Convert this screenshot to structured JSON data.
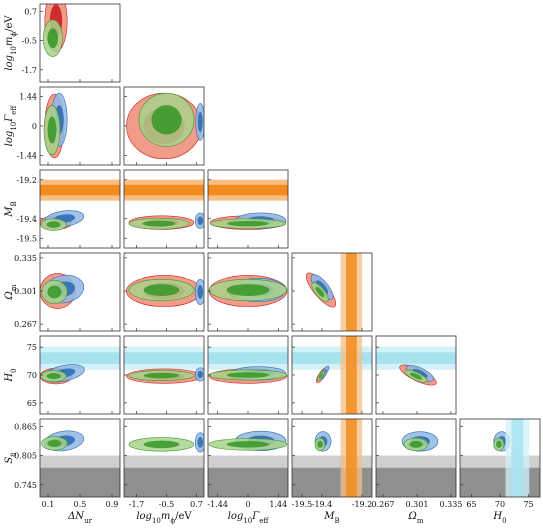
{
  "chart_data": {
    "type": "scatter",
    "subtype": "corner-plot",
    "parameters": [
      {
        "key": "dNur",
        "label": "ΔN",
        "sub": "ur",
        "range": [
          0.0,
          1.0
        ],
        "ticks": [
          0.1,
          0.5,
          0.9
        ],
        "tick_labels": [
          "0.1",
          "0.5",
          "0.9"
        ]
      },
      {
        "key": "mphi",
        "label": "log",
        "sub": "10",
        "label_rest": "m",
        "label_sub2": "ϕ",
        "unit": "/eV",
        "range": [
          -2.2,
          1.0
        ],
        "ticks": [
          -1.7,
          -0.5,
          0.7
        ],
        "tick_labels": [
          "-1.7",
          "-0.5",
          "0.7"
        ]
      },
      {
        "key": "gamma",
        "label": "log",
        "sub": "10",
        "label_rest": "Γ",
        "label_sub2": "eff",
        "range": [
          -1.9,
          1.9
        ],
        "ticks": [
          -1.44,
          0,
          1.44
        ],
        "tick_labels": [
          "-1.44",
          "0",
          "1.44"
        ]
      },
      {
        "key": "MB",
        "label": "M",
        "sub": "B",
        "range": [
          -19.55,
          -19.15
        ],
        "ticks": [
          -19.5,
          -19.4,
          -19.2
        ],
        "tick_labels": [
          "-19.5",
          "-19.4",
          "-19.2"
        ],
        "ytick_labels": [
          "-19.2",
          "-19.4",
          "-19.5"
        ]
      },
      {
        "key": "Om",
        "label": "Ω",
        "sub": "m",
        "range": [
          0.26,
          0.34
        ],
        "ticks": [
          0.267,
          0.301,
          0.335
        ],
        "tick_labels": [
          "0.267",
          "0.301",
          "0.335"
        ]
      },
      {
        "key": "H0",
        "label": "H",
        "sub": "0",
        "range": [
          63,
          77
        ],
        "ticks": [
          65,
          70,
          75
        ],
        "tick_labels": [
          "65",
          "70",
          "75"
        ]
      },
      {
        "key": "S8",
        "label": "S",
        "sub": "8",
        "range": [
          0.72,
          0.88
        ],
        "ticks": [
          0.745,
          0.805,
          0.865
        ],
        "tick_labels": [
          "0.745",
          "0.805",
          "0.865"
        ]
      }
    ],
    "series": [
      {
        "name": "",
        "color_inner": "#cc1f26",
        "color_outer": "#ee8a74"
      },
      {
        "name": "",
        "color_inner": "#2d6db5",
        "color_outer": "#8fb7e3"
      },
      {
        "name": "",
        "color_inner": "#3c9a2a",
        "color_outer": "#a9d28d"
      }
    ],
    "priors": {
      "MB": {
        "mean": -19.253,
        "sigma": 0.027,
        "color_inner": "#f28c1e",
        "color_outer": "#f8be83"
      },
      "H0": {
        "mean": 73.04,
        "sigma": 1.04,
        "color_inner": "#a7e3ef",
        "color_outer": "#d2f1f8"
      },
      "S8": {
        "upper_1sigma": 0.805,
        "upper_2sigma": 0.78,
        "color_inner": "#8f8f8f",
        "color_outer": "#cfcfcf"
      }
    },
    "panels": [
      {
        "row": 1,
        "col": 0,
        "blobs": [
          {
            "s": 0,
            "cx": 0.2,
            "cy": 0.3,
            "rx": 0.14,
            "ry": 1.25,
            "rot": 0
          },
          {
            "s": 2,
            "cx": 0.16,
            "cy": -0.4,
            "rx": 0.12,
            "ry": 0.75,
            "rot": 0
          }
        ]
      },
      {
        "row": 2,
        "col": 0,
        "blobs": [
          {
            "s": 0,
            "cx": 0.18,
            "cy": 0.0,
            "rx": 0.12,
            "ry": 1.55,
            "rot": 0
          },
          {
            "s": 1,
            "cx": 0.24,
            "cy": 0.3,
            "rx": 0.1,
            "ry": 1.3,
            "rot": 0
          },
          {
            "s": 2,
            "cx": 0.15,
            "cy": -0.2,
            "rx": 0.1,
            "ry": 1.2,
            "rot": 0
          }
        ]
      },
      {
        "row": 2,
        "col": 1,
        "blobs": [
          {
            "s": 0,
            "cx": -0.6,
            "cy": 0.0,
            "rx": 1.5,
            "ry": 1.6,
            "rot": 0
          },
          {
            "s": 2,
            "cx": -0.5,
            "cy": 0.3,
            "rx": 1.1,
            "ry": 1.3,
            "rot": 0
          },
          {
            "s": 1,
            "cx": 0.85,
            "cy": 0.2,
            "rx": 0.18,
            "ry": 0.9,
            "rot": 0
          }
        ]
      },
      {
        "row": 3,
        "col": 0,
        "blobs": [
          {
            "s": 0,
            "cx": 0.2,
            "cy": -19.42,
            "rx": 0.2,
            "ry": 0.035,
            "rot": 0
          },
          {
            "s": 1,
            "cx": 0.3,
            "cy": -19.4,
            "rx": 0.25,
            "ry": 0.04,
            "rot": -8
          },
          {
            "s": 2,
            "cx": 0.17,
            "cy": -19.43,
            "rx": 0.16,
            "ry": 0.03,
            "rot": 0
          }
        ]
      },
      {
        "row": 3,
        "col": 1,
        "blobs": [
          {
            "s": 0,
            "cx": -0.7,
            "cy": -19.42,
            "rx": 1.3,
            "ry": 0.035,
            "rot": 0
          },
          {
            "s": 2,
            "cx": -0.8,
            "cy": -19.425,
            "rx": 1.2,
            "ry": 0.028,
            "rot": 0
          },
          {
            "s": 1,
            "cx": 0.85,
            "cy": -19.41,
            "rx": 0.2,
            "ry": 0.04,
            "rot": 0
          }
        ]
      },
      {
        "row": 3,
        "col": 2,
        "blobs": [
          {
            "s": 0,
            "cx": 0.0,
            "cy": -19.42,
            "rx": 1.8,
            "ry": 0.035,
            "rot": 0
          },
          {
            "s": 1,
            "cx": 0.6,
            "cy": -19.41,
            "rx": 1.2,
            "ry": 0.04,
            "rot": 0
          },
          {
            "s": 2,
            "cx": 0.0,
            "cy": -19.425,
            "rx": 1.8,
            "ry": 0.025,
            "rot": 0
          }
        ]
      },
      {
        "row": 4,
        "col": 0,
        "blobs": [
          {
            "s": 0,
            "cx": 0.22,
            "cy": 0.301,
            "rx": 0.22,
            "ry": 0.018,
            "rot": 0
          },
          {
            "s": 1,
            "cx": 0.3,
            "cy": 0.303,
            "rx": 0.25,
            "ry": 0.014,
            "rot": -10
          },
          {
            "s": 2,
            "cx": 0.18,
            "cy": 0.3,
            "rx": 0.16,
            "ry": 0.012,
            "rot": 0
          }
        ]
      },
      {
        "row": 4,
        "col": 1,
        "blobs": [
          {
            "s": 0,
            "cx": -0.6,
            "cy": 0.301,
            "rx": 1.5,
            "ry": 0.016,
            "rot": 0
          },
          {
            "s": 2,
            "cx": -0.7,
            "cy": 0.302,
            "rx": 1.3,
            "ry": 0.011,
            "rot": 0
          },
          {
            "s": 1,
            "cx": 0.85,
            "cy": 0.3,
            "rx": 0.2,
            "ry": 0.013,
            "rot": 0
          }
        ]
      },
      {
        "row": 4,
        "col": 2,
        "blobs": [
          {
            "s": 0,
            "cx": 0.0,
            "cy": 0.301,
            "rx": 1.85,
            "ry": 0.016,
            "rot": 0
          },
          {
            "s": 1,
            "cx": 0.5,
            "cy": 0.302,
            "rx": 1.3,
            "ry": 0.012,
            "rot": 0
          },
          {
            "s": 2,
            "cx": 0.0,
            "cy": 0.302,
            "rx": 1.85,
            "ry": 0.011,
            "rot": 0
          }
        ]
      },
      {
        "row": 4,
        "col": 3,
        "blobs": [
          {
            "s": 0,
            "cx": -19.405,
            "cy": 0.302,
            "rx": 0.035,
            "ry": 0.022,
            "rot": -40
          },
          {
            "s": 1,
            "cx": -19.4,
            "cy": 0.305,
            "rx": 0.03,
            "ry": 0.016,
            "rot": -40
          },
          {
            "s": 2,
            "cx": -19.41,
            "cy": 0.3,
            "rx": 0.022,
            "ry": 0.012,
            "rot": -40
          }
        ]
      },
      {
        "row": 5,
        "col": 0,
        "blobs": [
          {
            "s": 0,
            "cx": 0.2,
            "cy": 69.8,
            "rx": 0.2,
            "ry": 1.4,
            "rot": 0
          },
          {
            "s": 1,
            "cx": 0.3,
            "cy": 70.3,
            "rx": 0.26,
            "ry": 1.4,
            "rot": -12
          },
          {
            "s": 2,
            "cx": 0.17,
            "cy": 69.8,
            "rx": 0.16,
            "ry": 1.0,
            "rot": 0
          }
        ]
      },
      {
        "row": 5,
        "col": 1,
        "blobs": [
          {
            "s": 0,
            "cx": -0.6,
            "cy": 69.8,
            "rx": 1.5,
            "ry": 1.3,
            "rot": 0
          },
          {
            "s": 2,
            "cx": -0.7,
            "cy": 69.9,
            "rx": 1.3,
            "ry": 0.9,
            "rot": 0
          },
          {
            "s": 1,
            "cx": 0.85,
            "cy": 70.1,
            "rx": 0.2,
            "ry": 1.2,
            "rot": 0
          }
        ]
      },
      {
        "row": 5,
        "col": 2,
        "blobs": [
          {
            "s": 0,
            "cx": 0.0,
            "cy": 69.8,
            "rx": 1.85,
            "ry": 1.3,
            "rot": 0
          },
          {
            "s": 1,
            "cx": 0.5,
            "cy": 70.3,
            "rx": 1.3,
            "ry": 1.2,
            "rot": 0
          },
          {
            "s": 2,
            "cx": 0.0,
            "cy": 70.0,
            "rx": 1.85,
            "ry": 0.9,
            "rot": 0
          }
        ]
      },
      {
        "row": 5,
        "col": 3,
        "blobs": [
          {
            "s": 0,
            "cx": -19.4,
            "cy": 70.0,
            "rx": 0.045,
            "ry": 0.55,
            "rot": -55
          },
          {
            "s": 1,
            "cx": -19.39,
            "cy": 70.4,
            "rx": 0.04,
            "ry": 0.45,
            "rot": -55
          },
          {
            "s": 2,
            "cx": -19.405,
            "cy": 69.9,
            "rx": 0.03,
            "ry": 0.32,
            "rot": -55
          }
        ]
      },
      {
        "row": 5,
        "col": 4,
        "blobs": [
          {
            "s": 0,
            "cx": 0.302,
            "cy": 70.0,
            "rx": 0.02,
            "ry": 1.1,
            "rot": 25
          },
          {
            "s": 1,
            "cx": 0.304,
            "cy": 70.3,
            "rx": 0.015,
            "ry": 0.95,
            "rot": 25
          },
          {
            "s": 2,
            "cx": 0.3,
            "cy": 69.8,
            "rx": 0.012,
            "ry": 0.7,
            "rot": 25
          }
        ]
      },
      {
        "row": 6,
        "col": 0,
        "blobs": [
          {
            "s": 1,
            "cx": 0.3,
            "cy": 0.835,
            "rx": 0.25,
            "ry": 0.02,
            "rot": -8
          },
          {
            "s": 2,
            "cx": 0.18,
            "cy": 0.83,
            "rx": 0.16,
            "ry": 0.014,
            "rot": 0
          }
        ]
      },
      {
        "row": 6,
        "col": 1,
        "blobs": [
          {
            "s": 2,
            "cx": -0.7,
            "cy": 0.828,
            "rx": 1.3,
            "ry": 0.014,
            "rot": 0
          },
          {
            "s": 1,
            "cx": 0.85,
            "cy": 0.832,
            "rx": 0.2,
            "ry": 0.02,
            "rot": 0
          }
        ]
      },
      {
        "row": 6,
        "col": 2,
        "blobs": [
          {
            "s": 1,
            "cx": 0.6,
            "cy": 0.835,
            "rx": 1.2,
            "ry": 0.02,
            "rot": 0
          },
          {
            "s": 2,
            "cx": 0.0,
            "cy": 0.828,
            "rx": 1.85,
            "ry": 0.012,
            "rot": 0
          }
        ]
      },
      {
        "row": 6,
        "col": 3,
        "blobs": [
          {
            "s": 1,
            "cx": -19.395,
            "cy": 0.834,
            "rx": 0.04,
            "ry": 0.02,
            "rot": 0
          },
          {
            "s": 2,
            "cx": -19.41,
            "cy": 0.828,
            "rx": 0.025,
            "ry": 0.013,
            "rot": 0
          }
        ]
      },
      {
        "row": 6,
        "col": 4,
        "blobs": [
          {
            "s": 1,
            "cx": 0.304,
            "cy": 0.834,
            "rx": 0.018,
            "ry": 0.02,
            "rot": 0
          },
          {
            "s": 2,
            "cx": 0.3,
            "cy": 0.828,
            "rx": 0.012,
            "ry": 0.013,
            "rot": 0
          }
        ]
      },
      {
        "row": 6,
        "col": 5,
        "blobs": [
          {
            "s": 1,
            "cx": 70.3,
            "cy": 0.834,
            "rx": 1.4,
            "ry": 0.02,
            "rot": 0
          },
          {
            "s": 2,
            "cx": 69.8,
            "cy": 0.828,
            "rx": 0.9,
            "ry": 0.013,
            "rot": 0
          }
        ]
      }
    ]
  }
}
